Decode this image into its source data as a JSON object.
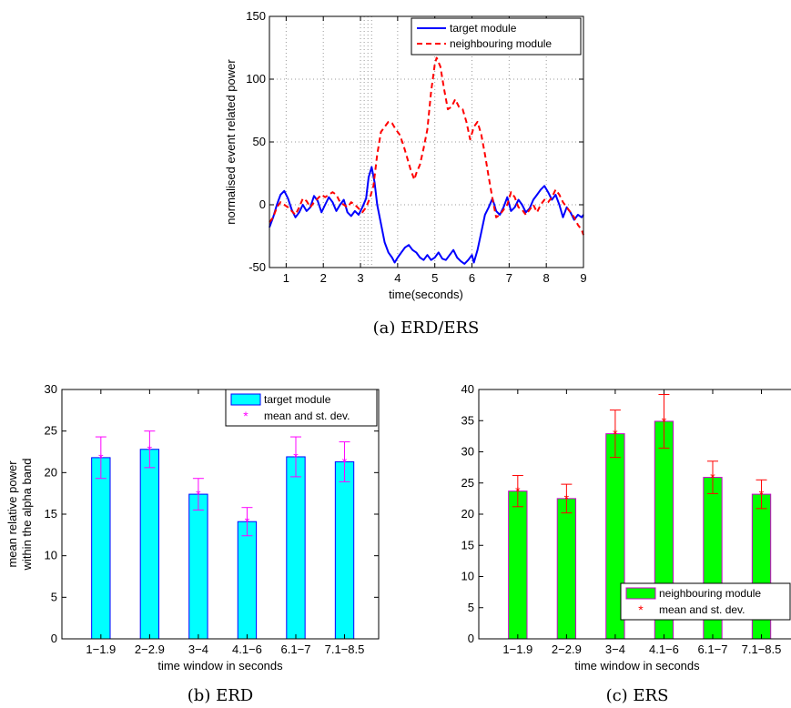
{
  "chart_data": [
    {
      "id": "a",
      "type": "line",
      "caption": "(a) ERD/ERS",
      "xlabel": "time(seconds)",
      "ylabel": "normalised event related power",
      "xlim": [
        0.55,
        9
      ],
      "ylim": [
        -50,
        150
      ],
      "xticks": [
        1,
        2,
        3,
        4,
        5,
        6,
        7,
        8,
        9
      ],
      "yticks": [
        -50,
        0,
        50,
        100,
        150
      ],
      "grid": true,
      "legend_position": "top-right",
      "series": [
        {
          "name": "target module",
          "color": "#0000ff",
          "style": "solid",
          "points": [
            [
              0.55,
              -18
            ],
            [
              0.65,
              -10
            ],
            [
              0.75,
              0
            ],
            [
              0.85,
              8
            ],
            [
              0.95,
              11
            ],
            [
              1.05,
              5
            ],
            [
              1.15,
              -4
            ],
            [
              1.25,
              -10
            ],
            [
              1.35,
              -6
            ],
            [
              1.45,
              0
            ],
            [
              1.55,
              -5
            ],
            [
              1.65,
              -2
            ],
            [
              1.75,
              7
            ],
            [
              1.85,
              3
            ],
            [
              1.95,
              -6
            ],
            [
              2.05,
              0
            ],
            [
              2.15,
              6
            ],
            [
              2.25,
              2
            ],
            [
              2.35,
              -5
            ],
            [
              2.45,
              0
            ],
            [
              2.55,
              4
            ],
            [
              2.65,
              -6
            ],
            [
              2.75,
              -9
            ],
            [
              2.85,
              -5
            ],
            [
              2.95,
              -8
            ],
            [
              3.05,
              -2
            ],
            [
              3.15,
              5
            ],
            [
              3.22,
              22
            ],
            [
              3.3,
              30
            ],
            [
              3.38,
              18
            ],
            [
              3.45,
              0
            ],
            [
              3.55,
              -15
            ],
            [
              3.65,
              -30
            ],
            [
              3.75,
              -38
            ],
            [
              3.85,
              -42
            ],
            [
              3.92,
              -46
            ],
            [
              4.0,
              -42
            ],
            [
              4.1,
              -38
            ],
            [
              4.2,
              -34
            ],
            [
              4.3,
              -32
            ],
            [
              4.4,
              -36
            ],
            [
              4.5,
              -38
            ],
            [
              4.6,
              -42
            ],
            [
              4.7,
              -44
            ],
            [
              4.8,
              -40
            ],
            [
              4.9,
              -44
            ],
            [
              5.0,
              -42
            ],
            [
              5.1,
              -38
            ],
            [
              5.2,
              -43
            ],
            [
              5.3,
              -44
            ],
            [
              5.4,
              -40
            ],
            [
              5.5,
              -36
            ],
            [
              5.6,
              -42
            ],
            [
              5.7,
              -45
            ],
            [
              5.8,
              -47
            ],
            [
              5.9,
              -44
            ],
            [
              6.0,
              -40
            ],
            [
              6.05,
              -46
            ],
            [
              6.15,
              -36
            ],
            [
              6.25,
              -22
            ],
            [
              6.35,
              -8
            ],
            [
              6.45,
              -2
            ],
            [
              6.55,
              5
            ],
            [
              6.65,
              -5
            ],
            [
              6.75,
              -8
            ],
            [
              6.85,
              -2
            ],
            [
              6.95,
              6
            ],
            [
              7.05,
              -5
            ],
            [
              7.15,
              -2
            ],
            [
              7.25,
              4
            ],
            [
              7.35,
              0
            ],
            [
              7.45,
              -6
            ],
            [
              7.55,
              -3
            ],
            [
              7.65,
              4
            ],
            [
              7.75,
              8
            ],
            [
              7.85,
              12
            ],
            [
              7.95,
              15
            ],
            [
              8.05,
              10
            ],
            [
              8.15,
              4
            ],
            [
              8.25,
              8
            ],
            [
              8.35,
              0
            ],
            [
              8.45,
              -10
            ],
            [
              8.55,
              -2
            ],
            [
              8.65,
              -6
            ],
            [
              8.75,
              -12
            ],
            [
              8.85,
              -8
            ],
            [
              8.95,
              -10
            ],
            [
              9.0,
              -8
            ]
          ]
        },
        {
          "name": "neighbouring module",
          "color": "#ff0000",
          "style": "dashed",
          "points": [
            [
              0.55,
              -14
            ],
            [
              0.65,
              -10
            ],
            [
              0.75,
              -2
            ],
            [
              0.85,
              2
            ],
            [
              0.95,
              0
            ],
            [
              1.05,
              -2
            ],
            [
              1.15,
              -5
            ],
            [
              1.25,
              -8
            ],
            [
              1.35,
              -2
            ],
            [
              1.45,
              5
            ],
            [
              1.55,
              3
            ],
            [
              1.65,
              -2
            ],
            [
              1.75,
              2
            ],
            [
              1.85,
              5
            ],
            [
              1.95,
              8
            ],
            [
              2.05,
              6
            ],
            [
              2.15,
              8
            ],
            [
              2.25,
              10
            ],
            [
              2.35,
              8
            ],
            [
              2.45,
              2
            ],
            [
              2.55,
              0
            ],
            [
              2.65,
              -2
            ],
            [
              2.75,
              2
            ],
            [
              2.85,
              0
            ],
            [
              2.95,
              -3
            ],
            [
              3.05,
              -6
            ],
            [
              3.15,
              -2
            ],
            [
              3.25,
              5
            ],
            [
              3.35,
              15
            ],
            [
              3.45,
              40
            ],
            [
              3.55,
              58
            ],
            [
              3.65,
              62
            ],
            [
              3.75,
              66
            ],
            [
              3.85,
              65
            ],
            [
              3.95,
              60
            ],
            [
              4.05,
              56
            ],
            [
              4.15,
              48
            ],
            [
              4.25,
              38
            ],
            [
              4.35,
              28
            ],
            [
              4.45,
              20
            ],
            [
              4.5,
              25
            ],
            [
              4.6,
              32
            ],
            [
              4.7,
              45
            ],
            [
              4.8,
              60
            ],
            [
              4.9,
              90
            ],
            [
              5.0,
              112
            ],
            [
              5.05,
              117
            ],
            [
              5.15,
              110
            ],
            [
              5.25,
              92
            ],
            [
              5.35,
              76
            ],
            [
              5.45,
              78
            ],
            [
              5.55,
              84
            ],
            [
              5.65,
              78
            ],
            [
              5.75,
              76
            ],
            [
              5.85,
              66
            ],
            [
              5.95,
              52
            ],
            [
              6.05,
              62
            ],
            [
              6.15,
              66
            ],
            [
              6.25,
              56
            ],
            [
              6.35,
              40
            ],
            [
              6.45,
              22
            ],
            [
              6.55,
              5
            ],
            [
              6.65,
              -10
            ],
            [
              6.75,
              -8
            ],
            [
              6.85,
              -4
            ],
            [
              6.95,
              0
            ],
            [
              7.05,
              10
            ],
            [
              7.15,
              6
            ],
            [
              7.25,
              -2
            ],
            [
              7.35,
              -4
            ],
            [
              7.45,
              -8
            ],
            [
              7.55,
              -4
            ],
            [
              7.65,
              0
            ],
            [
              7.75,
              -6
            ],
            [
              7.85,
              0
            ],
            [
              7.95,
              4
            ],
            [
              8.05,
              2
            ],
            [
              8.15,
              6
            ],
            [
              8.25,
              12
            ],
            [
              8.35,
              8
            ],
            [
              8.45,
              2
            ],
            [
              8.55,
              -2
            ],
            [
              8.65,
              -6
            ],
            [
              8.75,
              -10
            ],
            [
              8.85,
              -16
            ],
            [
              8.95,
              -20
            ],
            [
              9.0,
              -24
            ]
          ]
        }
      ],
      "vertical_dotted_lines": [
        3.0,
        3.1,
        3.2,
        3.3
      ]
    },
    {
      "id": "b",
      "type": "bar",
      "caption": "(b) ERD",
      "xlabel": "time window in seconds",
      "ylabel_lines": [
        "mean relative power",
        "within the alpha band"
      ],
      "ylim": [
        0,
        30
      ],
      "yticks": [
        0,
        5,
        10,
        15,
        20,
        25,
        30
      ],
      "categories": [
        "1−1.9",
        "2−2.9",
        "3−4",
        "4.1−6",
        "6.1−7",
        "7.1−8.5"
      ],
      "values": [
        21.8,
        22.8,
        17.4,
        14.1,
        21.9,
        21.3
      ],
      "errors": [
        2.5,
        2.2,
        1.9,
        1.7,
        2.4,
        2.4
      ],
      "bar_color": "#00ffff",
      "bar_edge": "#0000ff",
      "marker_color": "#ff00ff",
      "legend_position": "top-right",
      "legend": [
        "target module",
        "mean and st. dev."
      ]
    },
    {
      "id": "c",
      "type": "bar",
      "caption": "(c) ERS",
      "xlabel": "time window in seconds",
      "ylim": [
        0,
        40
      ],
      "yticks": [
        0,
        5,
        10,
        15,
        20,
        25,
        30,
        35,
        40
      ],
      "categories": [
        "1−1.9",
        "2−2.9",
        "3−4",
        "4.1−6",
        "6.1−7",
        "7.1−8.5"
      ],
      "values": [
        23.7,
        22.5,
        32.9,
        34.9,
        25.9,
        23.2
      ],
      "errors": [
        2.5,
        2.3,
        3.8,
        4.3,
        2.6,
        2.3
      ],
      "bar_color": "#00ff00",
      "bar_edge": "#cc00cc",
      "marker_color": "#ff0000",
      "legend_position": "bottom-right",
      "legend": [
        "neighbouring module",
        "mean and st. dev."
      ]
    }
  ]
}
